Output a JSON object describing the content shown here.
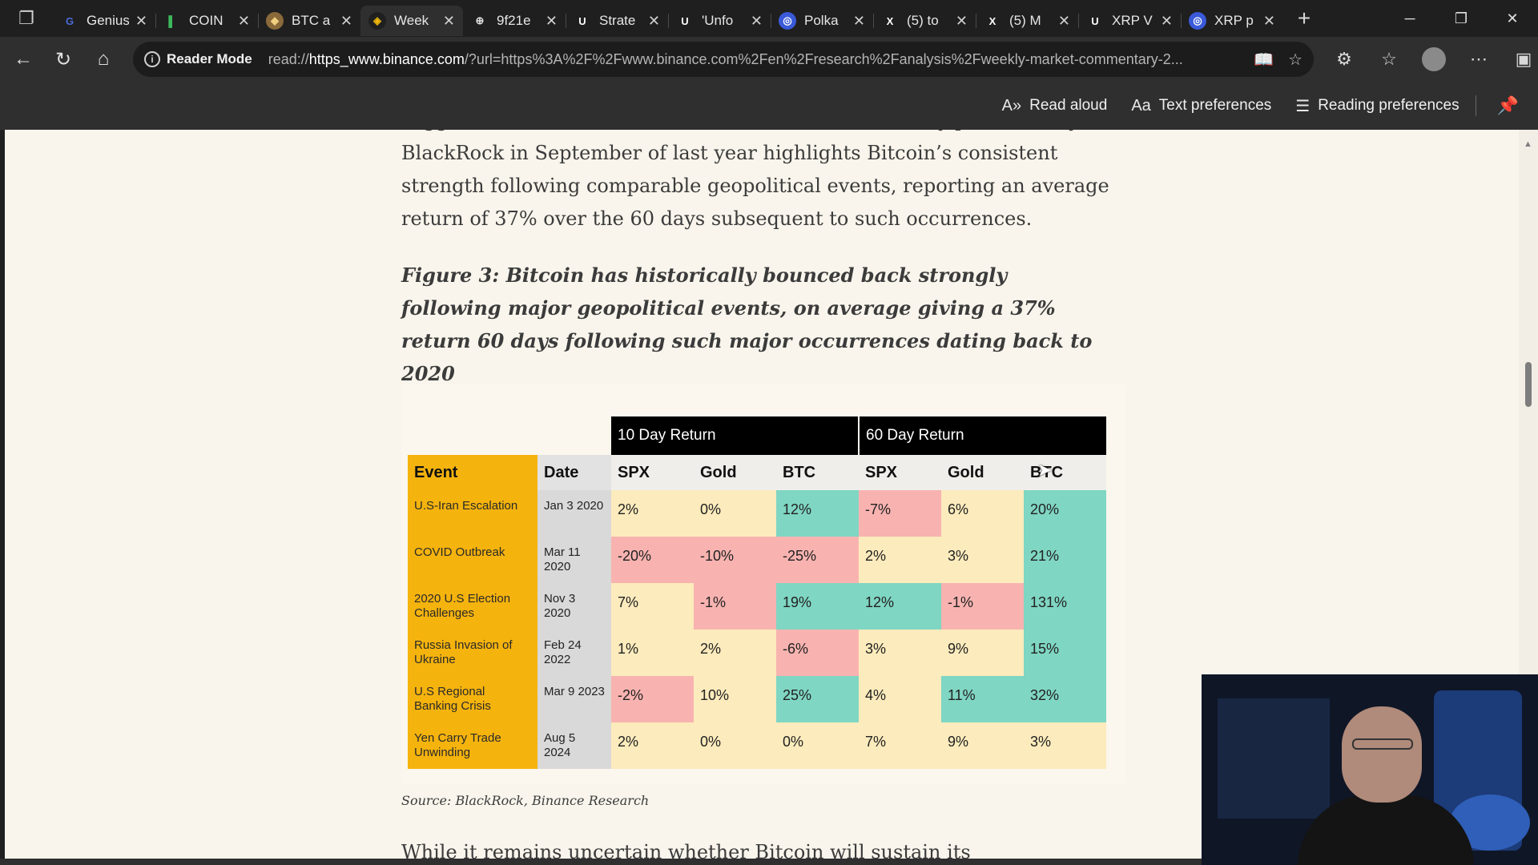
{
  "tabs": [
    {
      "title": "Genius",
      "icon": "G",
      "bg": "#1f1f1f",
      "fg": "#4b6bd6"
    },
    {
      "title": "COIN",
      "icon": "▌",
      "bg": "#1f1f1f",
      "fg": "#3dbb5c"
    },
    {
      "title": "BTC a",
      "icon": "◆",
      "bg": "#8a6a3a",
      "fg": "#f0d080"
    },
    {
      "title": "Week",
      "icon": "◈",
      "bg": "#1f1f1f",
      "fg": "#f0b90b",
      "active": true
    },
    {
      "title": "9f21e",
      "icon": "⊕",
      "bg": "#1f1f1f",
      "fg": "#e0e0e0"
    },
    {
      "title": "Strate",
      "icon": "U",
      "bg": "#1f1f1f",
      "fg": "#ffffff"
    },
    {
      "title": "'Unfo",
      "icon": "U",
      "bg": "#1f1f1f",
      "fg": "#ffffff"
    },
    {
      "title": "Polka",
      "icon": "◎",
      "bg": "#3a5ad8",
      "fg": "#ffffff"
    },
    {
      "title": "(5) to",
      "icon": "X",
      "bg": "#1f1f1f",
      "fg": "#ffffff"
    },
    {
      "title": "(5) M",
      "icon": "X",
      "bg": "#1f1f1f",
      "fg": "#ffffff"
    },
    {
      "title": "XRP V",
      "icon": "U",
      "bg": "#1f1f1f",
      "fg": "#ffffff"
    },
    {
      "title": "XRP p",
      "icon": "◎",
      "bg": "#3a5ad8",
      "fg": "#ffffff"
    }
  ],
  "address": {
    "mode_label": "Reader Mode",
    "url_prefix": "read://",
    "url_host": "https_www.binance.com",
    "url_rest": "/?url=https%3A%2F%2Fwww.binance.com%2Fen%2Fresearch%2Fanalysis%2Fweekly-market-commentary-2..."
  },
  "reader_bar": {
    "read_aloud": "Read aloud",
    "text_prefs": "Text preferences",
    "reading_prefs": "Reading preferences"
  },
  "article": {
    "para_top": "suggests it remains less established in this role. A study published by BlackRock in September of last year highlights Bitcoin’s consistent strength following comparable geopolitical events, reporting an average return of 37% over the 60 days subsequent to such occurrences.",
    "figure_caption": "Figure 3: Bitcoin has historically bounced back strongly following major geopolitical events, on average giving a 37% return 60 days following such major occurrences dating back to 2020",
    "source": "Source: BlackRock, Binance Research",
    "para_bottom": "While it remains uncertain whether Bitcoin will sustain its"
  },
  "table": {
    "group1": "10 Day Return",
    "group2": "60 Day Return",
    "headers": [
      "Event",
      "Date",
      "SPX",
      "Gold",
      "BTC",
      "SPX",
      "Gold",
      "BTC"
    ],
    "rows": [
      {
        "event": "U.S-Iran Escalation",
        "date": "Jan 3 2020",
        "vals": [
          "2%",
          "0%",
          "12%",
          "-7%",
          "6%",
          "20%"
        ],
        "tones": [
          "neu",
          "neu",
          "pos",
          "neg",
          "neu",
          "pos"
        ]
      },
      {
        "event": "COVID Outbreak",
        "date": "Mar 11 2020",
        "vals": [
          "-20%",
          "-10%",
          "-25%",
          "2%",
          "3%",
          "21%"
        ],
        "tones": [
          "neg",
          "neg",
          "neg",
          "neu",
          "neu",
          "pos"
        ]
      },
      {
        "event": "2020 U.S Election Challenges",
        "date": "Nov 3 2020",
        "vals": [
          "7%",
          "-1%",
          "19%",
          "12%",
          "-1%",
          "131%"
        ],
        "tones": [
          "neu",
          "neg",
          "pos",
          "pos",
          "neg",
          "pos"
        ]
      },
      {
        "event": "Russia Invasion of Ukraine",
        "date": "Feb 24 2022",
        "vals": [
          "1%",
          "2%",
          "-6%",
          "3%",
          "9%",
          "15%"
        ],
        "tones": [
          "neu",
          "neu",
          "neg",
          "neu",
          "neu",
          "pos"
        ]
      },
      {
        "event": "U.S Regional Banking Crisis",
        "date": "Mar 9 2023",
        "vals": [
          "-2%",
          "10%",
          "25%",
          "4%",
          "11%",
          "32%"
        ],
        "tones": [
          "neg",
          "neu",
          "pos",
          "neu",
          "pos",
          "pos"
        ]
      },
      {
        "event": "Yen Carry Trade Unwinding",
        "date": "Aug 5 2024",
        "vals": [
          "2%",
          "0%",
          "0%",
          "7%",
          "9%",
          "3%"
        ],
        "tones": [
          "neu",
          "neu",
          "neu",
          "neu",
          "neu",
          "neu"
        ]
      }
    ]
  },
  "colors": {
    "positive": "#7fd6c3",
    "negative": "#f8b3b0",
    "neutral": "#fcebbc",
    "event_col": "#f5b30d"
  }
}
